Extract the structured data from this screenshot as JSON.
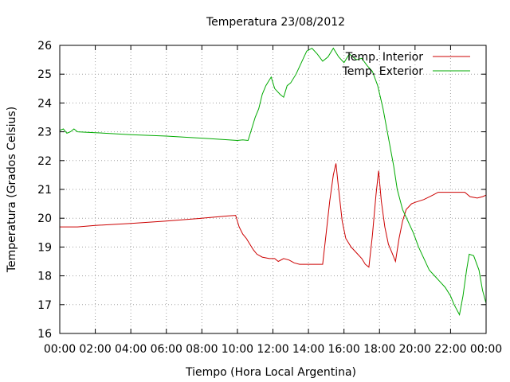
{
  "chart_data": {
    "type": "line",
    "title": "Temperatura 23/08/2012",
    "xlabel": "Tiempo (Hora Local Argentina)",
    "ylabel": "Temperatura (Grados Celsius)",
    "xlim": [
      0,
      24
    ],
    "ylim": [
      16,
      26
    ],
    "grid": true,
    "legend_position": "top-right",
    "x_ticks": [
      {
        "value": 0,
        "label": "00:00"
      },
      {
        "value": 2,
        "label": "02:00"
      },
      {
        "value": 4,
        "label": "04:00"
      },
      {
        "value": 6,
        "label": "06:00"
      },
      {
        "value": 8,
        "label": "08:00"
      },
      {
        "value": 10,
        "label": "10:00"
      },
      {
        "value": 12,
        "label": "12:00"
      },
      {
        "value": 14,
        "label": "14:00"
      },
      {
        "value": 16,
        "label": "16:00"
      },
      {
        "value": 18,
        "label": "18:00"
      },
      {
        "value": 20,
        "label": "20:00"
      },
      {
        "value": 22,
        "label": "22:00"
      },
      {
        "value": 24,
        "label": "00:00"
      }
    ],
    "y_ticks": [
      {
        "value": 16,
        "label": "16"
      },
      {
        "value": 17,
        "label": "17"
      },
      {
        "value": 18,
        "label": "18"
      },
      {
        "value": 19,
        "label": "19"
      },
      {
        "value": 20,
        "label": "20"
      },
      {
        "value": 21,
        "label": "21"
      },
      {
        "value": 22,
        "label": "22"
      },
      {
        "value": 23,
        "label": "23"
      },
      {
        "value": 24,
        "label": "24"
      },
      {
        "value": 25,
        "label": "25"
      },
      {
        "value": 26,
        "label": "26"
      }
    ],
    "series": [
      {
        "name": "Temp. Interior",
        "color": "#cc0000",
        "points": [
          [
            0.0,
            19.7
          ],
          [
            1.0,
            19.7
          ],
          [
            2.0,
            19.75
          ],
          [
            4.0,
            19.82
          ],
          [
            6.0,
            19.9
          ],
          [
            8.0,
            20.0
          ],
          [
            9.5,
            20.08
          ],
          [
            9.9,
            20.1
          ],
          [
            10.1,
            19.7
          ],
          [
            10.3,
            19.45
          ],
          [
            10.5,
            19.3
          ],
          [
            10.7,
            19.1
          ],
          [
            10.9,
            18.9
          ],
          [
            11.1,
            18.75
          ],
          [
            11.4,
            18.65
          ],
          [
            11.8,
            18.6
          ],
          [
            12.1,
            18.6
          ],
          [
            12.3,
            18.5
          ],
          [
            12.6,
            18.6
          ],
          [
            12.9,
            18.55
          ],
          [
            13.2,
            18.45
          ],
          [
            13.5,
            18.4
          ],
          [
            14.5,
            18.4
          ],
          [
            14.8,
            18.4
          ],
          [
            15.0,
            19.5
          ],
          [
            15.2,
            20.6
          ],
          [
            15.4,
            21.5
          ],
          [
            15.55,
            21.9
          ],
          [
            15.7,
            21.0
          ],
          [
            15.9,
            19.9
          ],
          [
            16.1,
            19.3
          ],
          [
            16.4,
            19.0
          ],
          [
            16.7,
            18.8
          ],
          [
            17.0,
            18.6
          ],
          [
            17.2,
            18.4
          ],
          [
            17.4,
            18.3
          ],
          [
            17.6,
            19.4
          ],
          [
            17.8,
            20.8
          ],
          [
            17.95,
            21.65
          ],
          [
            18.1,
            20.6
          ],
          [
            18.3,
            19.7
          ],
          [
            18.5,
            19.1
          ],
          [
            18.7,
            18.8
          ],
          [
            18.9,
            18.5
          ],
          [
            19.1,
            19.3
          ],
          [
            19.3,
            19.9
          ],
          [
            19.5,
            20.3
          ],
          [
            19.8,
            20.5
          ],
          [
            20.0,
            20.55
          ],
          [
            20.5,
            20.65
          ],
          [
            21.0,
            20.8
          ],
          [
            21.3,
            20.9
          ],
          [
            22.0,
            20.9
          ],
          [
            22.8,
            20.9
          ],
          [
            23.1,
            20.75
          ],
          [
            23.5,
            20.7
          ],
          [
            23.8,
            20.75
          ],
          [
            24.0,
            20.8
          ]
        ]
      },
      {
        "name": "Temp. Exterior",
        "color": "#00aa00",
        "points": [
          [
            0.0,
            23.05
          ],
          [
            0.2,
            23.1
          ],
          [
            0.4,
            22.95
          ],
          [
            0.6,
            23.0
          ],
          [
            0.8,
            23.1
          ],
          [
            1.0,
            23.0
          ],
          [
            2.0,
            22.97
          ],
          [
            4.0,
            22.9
          ],
          [
            6.0,
            22.85
          ],
          [
            8.0,
            22.78
          ],
          [
            9.5,
            22.72
          ],
          [
            10.0,
            22.7
          ],
          [
            10.3,
            22.72
          ],
          [
            10.6,
            22.7
          ],
          [
            10.8,
            23.1
          ],
          [
            11.0,
            23.5
          ],
          [
            11.2,
            23.8
          ],
          [
            11.4,
            24.3
          ],
          [
            11.6,
            24.6
          ],
          [
            11.9,
            24.9
          ],
          [
            12.1,
            24.5
          ],
          [
            12.4,
            24.3
          ],
          [
            12.6,
            24.2
          ],
          [
            12.8,
            24.6
          ],
          [
            13.0,
            24.7
          ],
          [
            13.3,
            25.0
          ],
          [
            13.6,
            25.4
          ],
          [
            13.9,
            25.8
          ],
          [
            14.2,
            25.9
          ],
          [
            14.5,
            25.7
          ],
          [
            14.8,
            25.45
          ],
          [
            15.1,
            25.6
          ],
          [
            15.4,
            25.9
          ],
          [
            15.7,
            25.6
          ],
          [
            16.0,
            25.4
          ],
          [
            16.3,
            25.7
          ],
          [
            16.7,
            25.5
          ],
          [
            17.0,
            25.55
          ],
          [
            17.3,
            25.3
          ],
          [
            17.6,
            25.1
          ],
          [
            17.9,
            24.6
          ],
          [
            18.2,
            23.8
          ],
          [
            18.5,
            22.8
          ],
          [
            18.8,
            21.8
          ],
          [
            19.0,
            21.0
          ],
          [
            19.3,
            20.3
          ],
          [
            19.6,
            19.9
          ],
          [
            19.9,
            19.5
          ],
          [
            20.2,
            19.0
          ],
          [
            20.5,
            18.6
          ],
          [
            20.8,
            18.2
          ],
          [
            21.1,
            18.0
          ],
          [
            21.4,
            17.8
          ],
          [
            21.7,
            17.6
          ],
          [
            22.0,
            17.3
          ],
          [
            22.2,
            17.0
          ],
          [
            22.5,
            16.65
          ],
          [
            22.7,
            17.3
          ],
          [
            22.9,
            18.2
          ],
          [
            23.05,
            18.75
          ],
          [
            23.3,
            18.7
          ],
          [
            23.6,
            18.2
          ],
          [
            23.8,
            17.5
          ],
          [
            24.0,
            17.05
          ]
        ]
      }
    ]
  }
}
